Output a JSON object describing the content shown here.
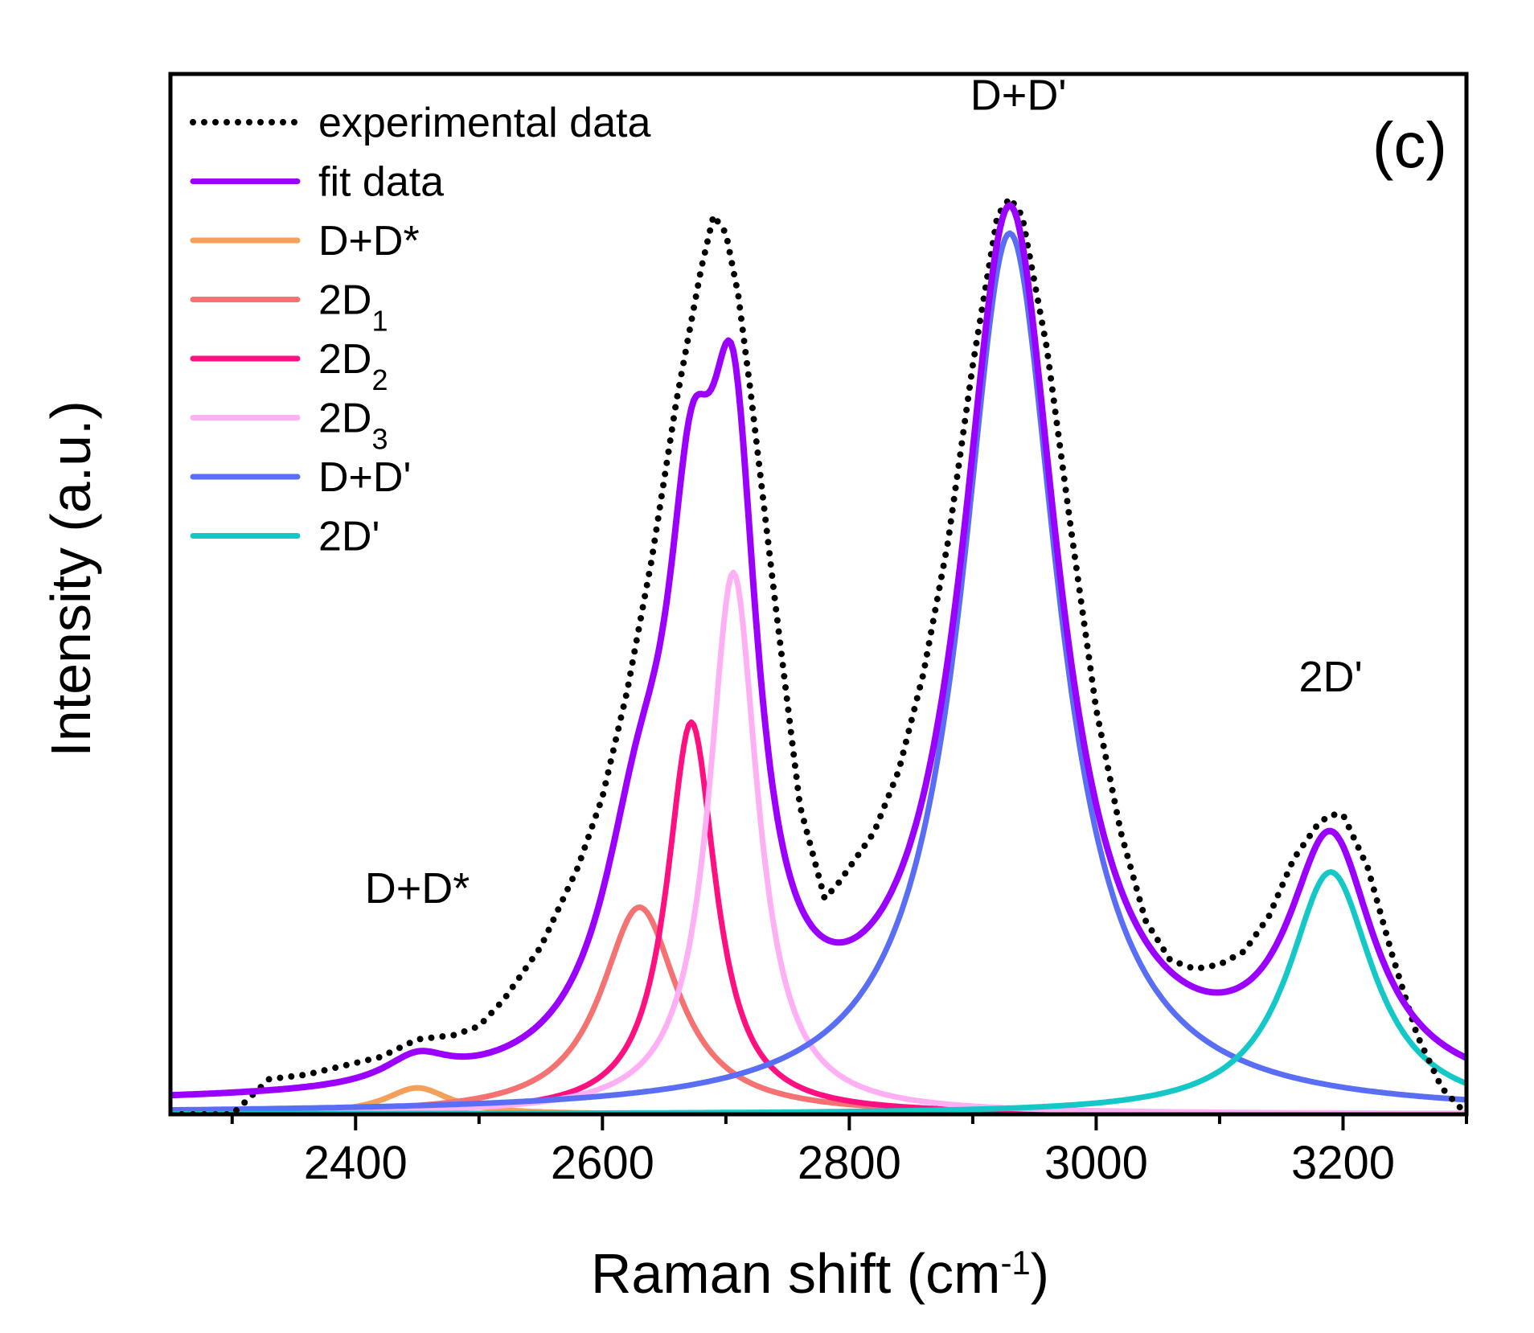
{
  "chart_data": {
    "type": "line",
    "panel_label": "(c)",
    "xlabel": {
      "main": "Raman shift (cm",
      "sup": "-1",
      "close": ")"
    },
    "ylabel": "Intensity (a.u.)",
    "xlim": [
      2250,
      3300
    ],
    "ylim": [
      0,
      1.0
    ],
    "x_ticks": [
      2400,
      2600,
      2800,
      3000,
      3200
    ],
    "x_tick_labels": [
      "2400",
      "2600",
      "2800",
      "3000",
      "3200"
    ],
    "legend_position": "top-left",
    "legend": [
      {
        "key": "exp",
        "label": "experimental data",
        "sub": "",
        "tail": "",
        "color": "#000000",
        "style": "dotted"
      },
      {
        "key": "fit",
        "label": "fit data",
        "sub": "",
        "tail": "",
        "color": "#9b00ff",
        "style": "solid"
      },
      {
        "key": "ddstar",
        "label": "D+D*",
        "sub": "",
        "tail": "",
        "color": "#f5a05a",
        "style": "solid"
      },
      {
        "key": "2d1",
        "label": "2D",
        "sub": "1",
        "tail": "",
        "color": "#f57272",
        "style": "solid"
      },
      {
        "key": "2d2",
        "label": "2D",
        "sub": "2",
        "tail": "",
        "color": "#ff1080",
        "style": "solid"
      },
      {
        "key": "2d3",
        "label": "2D",
        "sub": "3",
        "tail": "",
        "color": "#ffb0f5",
        "style": "solid"
      },
      {
        "key": "ddp",
        "label": "D+D'",
        "sub": "",
        "tail": "",
        "color": "#5a6ef5",
        "style": "solid"
      },
      {
        "key": "2dp",
        "label": "2D'",
        "sub": "",
        "tail": "",
        "color": "#14c8c8",
        "style": "solid"
      }
    ],
    "peaks": [
      {
        "name": "D+D*",
        "center": 2450,
        "amplitude": 0.03,
        "width": 32,
        "color": "#f5a05a"
      },
      {
        "name": "2D1",
        "center": 2630,
        "amplitude": 0.235,
        "width": 38,
        "color": "#f57272"
      },
      {
        "name": "2D2",
        "center": 2672,
        "amplitude": 0.445,
        "width": 24,
        "color": "#ff1080"
      },
      {
        "name": "2D3",
        "center": 2706,
        "amplitude": 0.615,
        "width": 24,
        "color": "#ffb0f5"
      },
      {
        "name": "D+D'",
        "center": 2930,
        "amplitude": 1.0,
        "width": 48,
        "color": "#5a6ef5"
      },
      {
        "name": "2D'",
        "center": 3190,
        "amplitude": 0.275,
        "width": 42,
        "color": "#14c8c8"
      }
    ],
    "fit_baseline": 0.01,
    "experimental_data": {
      "x": [
        2250,
        2300,
        2330,
        2360,
        2390,
        2420,
        2450,
        2480,
        2500,
        2520,
        2550,
        2580,
        2600,
        2620,
        2640,
        2660,
        2680,
        2690,
        2700,
        2710,
        2720,
        2740,
        2760,
        2780,
        2790,
        2800,
        2820,
        2840,
        2860,
        2880,
        2900,
        2920,
        2930,
        2940,
        2960,
        2980,
        3000,
        3020,
        3040,
        3060,
        3080,
        3100,
        3120,
        3140,
        3160,
        3180,
        3190,
        3200,
        3220,
        3240,
        3260,
        3280,
        3300
      ],
      "y": [
        0.0,
        0.0,
        0.04,
        0.045,
        0.055,
        0.065,
        0.085,
        0.09,
        0.1,
        0.13,
        0.19,
        0.28,
        0.36,
        0.48,
        0.63,
        0.81,
        0.96,
        1.02,
        1.0,
        0.93,
        0.82,
        0.58,
        0.35,
        0.245,
        0.26,
        0.28,
        0.32,
        0.39,
        0.5,
        0.65,
        0.85,
        1.02,
        1.04,
        1.02,
        0.87,
        0.66,
        0.46,
        0.32,
        0.22,
        0.175,
        0.165,
        0.17,
        0.185,
        0.225,
        0.29,
        0.33,
        0.34,
        0.34,
        0.28,
        0.18,
        0.09,
        0.03,
        0.0
      ]
    },
    "annotations": [
      {
        "text": "D+D*",
        "x": 2450,
        "y": 0.24
      },
      {
        "text": "2D'",
        "x": 3190,
        "y": 0.48
      },
      {
        "text": "D+D'",
        "x": 2937,
        "y": 1.14
      }
    ]
  }
}
